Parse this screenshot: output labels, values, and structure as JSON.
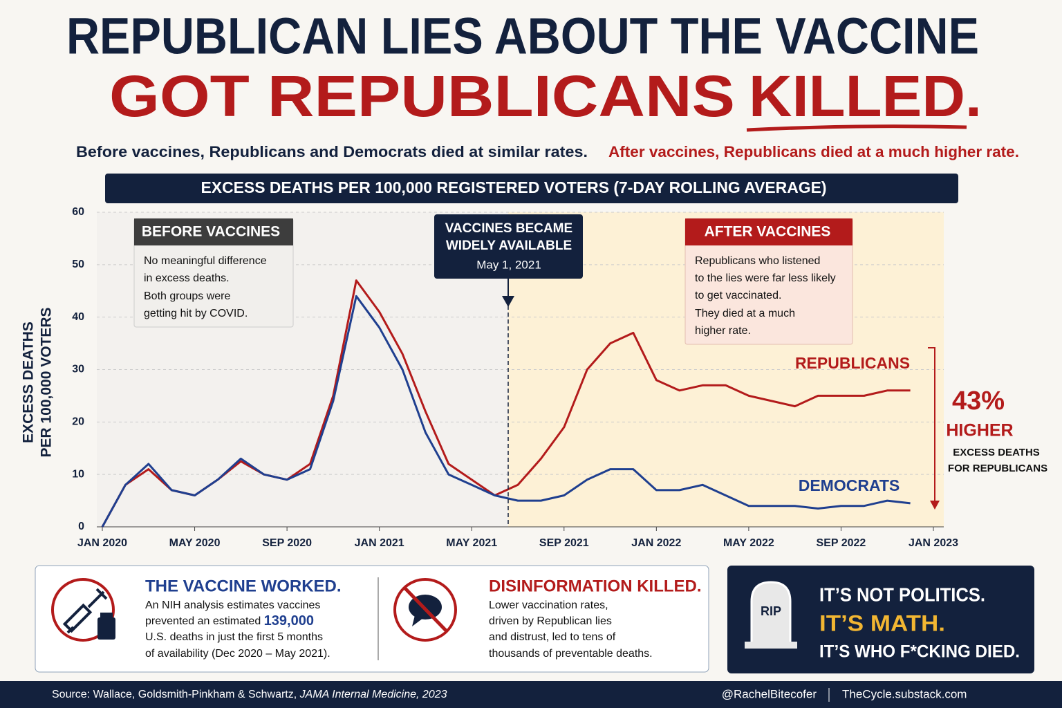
{
  "header": {
    "title_line1": "REPUBLICAN LIES ABOUT THE VACCINE",
    "title_line2": "GOT REPUBLICANS",
    "title_emphasis": "KILLED.",
    "subtitle_left": "Before vaccines, Republicans and Democrats died at similar rates.",
    "subtitle_right": "After vaccines, Republicans died at a much higher rate."
  },
  "chart_data": {
    "type": "line",
    "title": "EXCESS DEATHS PER 100,000 REGISTERED VOTERS (7-DAY ROLLING AVERAGE)",
    "y_label": [
      "EXCESS DEATHS",
      "PER 100,000 VOTERS"
    ],
    "x": [
      "2020-01",
      "2020-02",
      "2020-03",
      "2020-04",
      "2020-05",
      "2020-06",
      "2020-07",
      "2020-08",
      "2020-09",
      "2020-10",
      "2020-11",
      "2020-12",
      "2021-01",
      "2021-02",
      "2021-03",
      "2021-04",
      "2021-05",
      "2021-06",
      "2021-07",
      "2021-08",
      "2021-09",
      "2021-10",
      "2021-11",
      "2021-12",
      "2022-01",
      "2022-02",
      "2022-03",
      "2022-04",
      "2022-05",
      "2022-06",
      "2022-07",
      "2022-08",
      "2022-09",
      "2022-10",
      "2022-11",
      "2022-12"
    ],
    "xlim": [
      "2020-01",
      "2023-01"
    ],
    "xticks": [
      {
        "value": "2020-01",
        "label": "JAN 2020"
      },
      {
        "value": "2020-05",
        "label": "MAY 2020"
      },
      {
        "value": "2020-09",
        "label": "SEP 2020"
      },
      {
        "value": "2021-01",
        "label": "JAN 2021"
      },
      {
        "value": "2021-05",
        "label": "MAY 2021"
      },
      {
        "value": "2021-09",
        "label": "SEP 2021"
      },
      {
        "value": "2022-01",
        "label": "JAN 2022"
      },
      {
        "value": "2022-05",
        "label": "MAY 2022"
      },
      {
        "value": "2022-09",
        "label": "SEP 2022"
      },
      {
        "value": "2023-01",
        "label": "JAN 2023"
      }
    ],
    "ylim": [
      0,
      60
    ],
    "yticks": [
      0,
      10,
      20,
      30,
      40,
      50,
      60
    ],
    "grid": true,
    "series": [
      {
        "name": "REPUBLICANS",
        "color": "#b31b1b",
        "values": [
          0,
          8,
          11,
          7,
          6,
          9,
          12.5,
          10,
          9,
          12,
          25,
          47,
          41,
          33,
          22,
          12,
          9,
          6,
          8,
          13,
          19,
          30,
          35,
          37,
          28,
          26,
          27,
          27,
          25,
          24,
          23,
          25,
          25,
          25,
          26,
          26
        ]
      },
      {
        "name": "DEMOCRATS",
        "color": "#1f3f8f",
        "values": [
          0,
          8,
          12,
          7,
          6,
          9,
          13,
          10,
          9,
          11,
          24,
          44,
          38,
          30,
          18,
          10,
          8,
          6,
          5,
          5,
          6,
          9,
          11,
          11,
          7,
          7,
          8,
          6,
          4,
          4,
          4,
          3.5,
          4,
          4,
          5,
          4.5
        ]
      }
    ],
    "annotations": {
      "before_title": "BEFORE VACCINES",
      "before_body": [
        "No meaningful difference",
        "in excess deaths.",
        "Both groups were",
        "getting hit by COVID."
      ],
      "vaccine_title": [
        "VACCINES BECAME",
        "WIDELY AVAILABLE"
      ],
      "vaccine_date": "May 1, 2021",
      "after_title": "AFTER VACCINES",
      "after_body": [
        "Republicans who listened",
        "to the lies were far less likely",
        "to get vaccinated.",
        "They died at a much",
        "higher rate."
      ],
      "difference": "43%",
      "difference_word": "HIGHER",
      "difference_note": [
        "EXCESS DEATHS",
        "FOR REPUBLICANS"
      ]
    }
  },
  "panels": {
    "worked_title": "THE VACCINE WORKED.",
    "worked_body": [
      "An NIH analysis estimates vaccines",
      "prevented an estimated",
      "U.S. deaths in just the first 5 months",
      "of availability (Dec 2020 – May 2021)."
    ],
    "worked_highlight": "139,000",
    "killed_title": "DISINFORMATION KILLED.",
    "killed_body": [
      "Lower vaccination rates,",
      "driven by Republican lies",
      "and distrust, led to tens of",
      "thousands of preventable deaths."
    ],
    "rip": "RIP",
    "math_lines": [
      "IT’S NOT POLITICS.",
      "IT’S MATH.",
      "IT’S WHO F*CKING DIED."
    ]
  },
  "footer": {
    "source": "Source: Wallace, Goldsmith-Pinkham & Schwartz,",
    "journal": "JAMA Internal Medicine, 2023",
    "handle": "@RachelBitecofer",
    "site": "TheCycle.substack.com"
  }
}
